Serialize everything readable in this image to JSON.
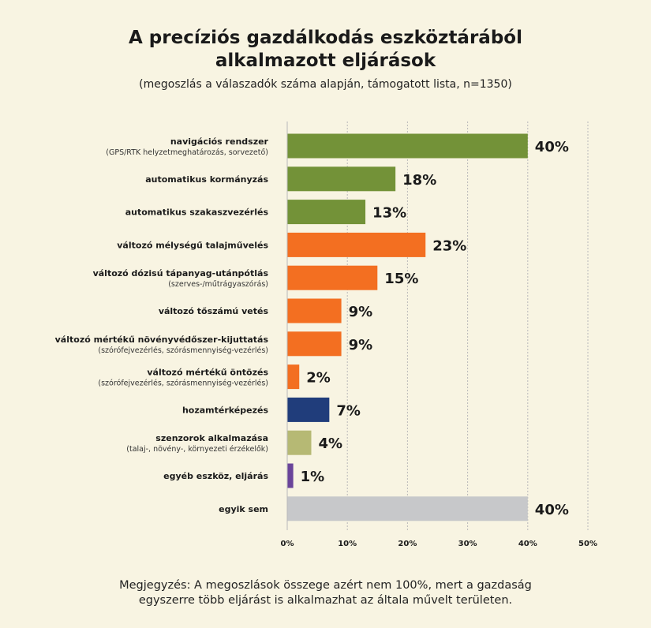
{
  "header": {
    "title_line1": "A precíziós gazdálkodás eszköztárából",
    "title_line2": "alkalmazott eljárások",
    "subtitle": "(megoszlás a válaszadók száma alapján, támogatott lista, n=1350)"
  },
  "note": {
    "line1": "Megjegyzés: A megoszlások összege azért nem 100%, mert a gazdaság",
    "line2": "egyszerre több eljárást is alkalmazhat az általa művelt területen."
  },
  "colors": {
    "green": "#739238",
    "orange": "#f36f21",
    "navy": "#203d7b",
    "olive": "#b6b974",
    "purple": "#6a449a",
    "gray": "#c7c8ca",
    "grid": "#b9b9b9"
  },
  "chart_data": {
    "type": "bar",
    "orientation": "horizontal",
    "xlim": [
      0,
      50
    ],
    "xticks": [
      "0%",
      "10%",
      "20%",
      "30%",
      "40%",
      "50%"
    ],
    "grid": true,
    "items": [
      {
        "label": "navigációs rendszer",
        "sublabel": "(GPS/RTK helyzetmeghatározás, sorvezető)",
        "value": 40,
        "value_label": "40%",
        "color": "green"
      },
      {
        "label": "automatikus kormányzás",
        "sublabel": "",
        "value": 18,
        "value_label": "18%",
        "color": "green"
      },
      {
        "label": "automatikus szakaszvezérlés",
        "sublabel": "",
        "value": 13,
        "value_label": "13%",
        "color": "green"
      },
      {
        "label": "változó mélységű talajművelés",
        "sublabel": "",
        "value": 23,
        "value_label": "23%",
        "color": "orange"
      },
      {
        "label": "változó dózisú tápanyag-utánpótlás",
        "sublabel": "(szerves-/műtrágyaszórás)",
        "value": 15,
        "value_label": "15%",
        "color": "orange"
      },
      {
        "label": "változó tőszámú vetés",
        "sublabel": "",
        "value": 9,
        "value_label": "9%",
        "color": "orange"
      },
      {
        "label": "változó mértékű növényvédőszer-kijuttatás",
        "sublabel": "(szórófejvezérlés, szórásmennyiség-vezérlés)",
        "value": 9,
        "value_label": "9%",
        "color": "orange"
      },
      {
        "label": "változó mértékű öntözés",
        "sublabel": "(szórófejvezérlés, szórásmennyiség-vezérlés)",
        "value": 2,
        "value_label": "2%",
        "color": "orange"
      },
      {
        "label": "hozamtérképezés",
        "sublabel": "",
        "value": 7,
        "value_label": "7%",
        "color": "navy"
      },
      {
        "label": "szenzorok alkalmazása",
        "sublabel": "(talaj-, növény-, környezeti érzékelők)",
        "value": 4,
        "value_label": "4%",
        "color": "olive"
      },
      {
        "label": "egyéb eszköz, eljárás",
        "sublabel": "",
        "value": 1,
        "value_label": "1%",
        "color": "purple"
      },
      {
        "label": "egyik sem",
        "sublabel": "",
        "value": 40,
        "value_label": "40%",
        "color": "gray"
      }
    ]
  }
}
